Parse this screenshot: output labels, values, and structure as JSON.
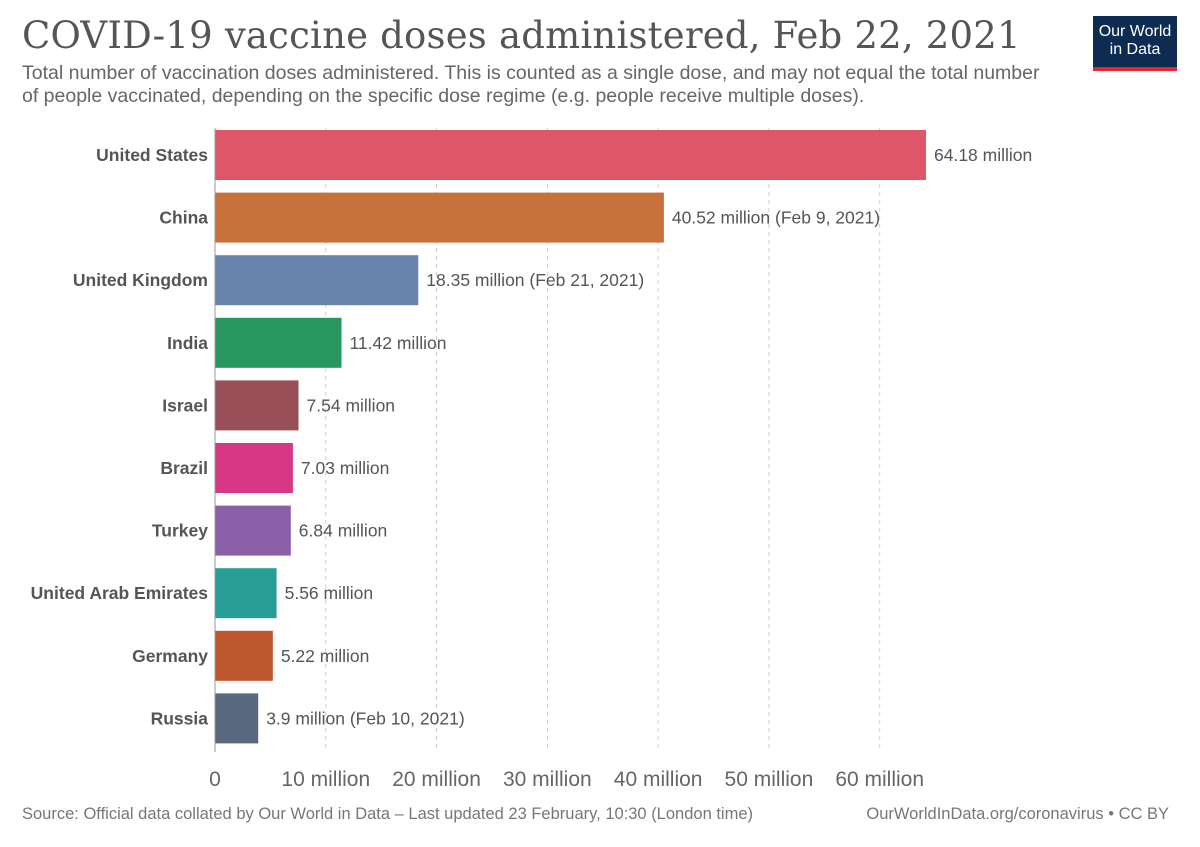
{
  "header": {
    "title": "COVID-19 vaccine doses administered, Feb 22, 2021",
    "subtitle": "Total number of vaccination doses administered. This is counted as a single dose, and may not equal the total number of people vaccinated, depending on the specific dose regime (e.g. people receive multiple doses)."
  },
  "logo": {
    "line1": "Our World",
    "line2": "in Data"
  },
  "footer": {
    "source": "Source: Official data collated by Our World in Data – Last updated 23 February, 10:30 (London time)",
    "link": "OurWorldInData.org/coronavirus • CC BY"
  },
  "chart_data": {
    "type": "bar",
    "orientation": "horizontal",
    "title": "COVID-19 vaccine doses administered, Feb 22, 2021",
    "xlabel": "",
    "ylabel": "",
    "xlim": [
      0,
      64.18
    ],
    "grid": true,
    "x_ticks": [
      0,
      10,
      20,
      30,
      40,
      50,
      60
    ],
    "x_tick_labels": [
      "0",
      "10 million",
      "20 million",
      "30 million",
      "40 million",
      "50 million",
      "60 million"
    ],
    "categories": [
      "United States",
      "China",
      "United Kingdom",
      "India",
      "Israel",
      "Brazil",
      "Turkey",
      "United Arab Emirates",
      "Germany",
      "Russia"
    ],
    "values": [
      64.18,
      40.52,
      18.35,
      11.42,
      7.54,
      7.03,
      6.84,
      5.56,
      5.22,
      3.9
    ],
    "value_labels": [
      "64.18 million",
      "40.52 million (Feb 9, 2021)",
      "18.35 million (Feb 21, 2021)",
      "11.42 million",
      "7.54 million",
      "7.03 million",
      "6.84 million",
      "5.56 million",
      "5.22 million",
      "3.9 million (Feb 10, 2021)"
    ],
    "colors": [
      "#dd5769",
      "#c8713a",
      "#6884ab",
      "#2a9660",
      "#994f58",
      "#d63784",
      "#8a5fa7",
      "#289d96",
      "#be562e",
      "#58697f"
    ]
  }
}
